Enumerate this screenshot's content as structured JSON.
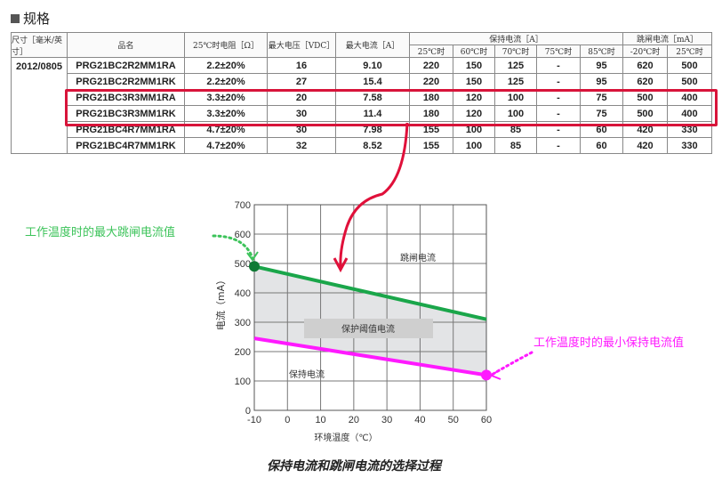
{
  "section_title": "规格",
  "table": {
    "headers": {
      "size": "尺寸［毫米/英寸］",
      "name": "品名",
      "resistance": "25℃时电阻［Ω］",
      "max_voltage": "最大电压［VDC］",
      "max_current": "最大电流［A］",
      "hold_current": "保持电流［A］",
      "trip_current": "跳闸电流［mA］",
      "hold_temps": [
        "25℃时",
        "60℃时",
        "70℃时",
        "75℃时",
        "85℃时"
      ],
      "trip_temps": [
        "-20℃时",
        "25℃时"
      ]
    },
    "size_value": "2012/0805",
    "rows": [
      [
        "PRG21BC2R2MM1RA",
        "2.2±20%",
        "16",
        "9.10",
        "220",
        "150",
        "125",
        "-",
        "95",
        "620",
        "500"
      ],
      [
        "PRG21BC2R2MM1RK",
        "2.2±20%",
        "27",
        "15.4",
        "220",
        "150",
        "125",
        "-",
        "95",
        "620",
        "500"
      ],
      [
        "PRG21BC3R3MM1RA",
        "3.3±20%",
        "20",
        "7.58",
        "180",
        "120",
        "100",
        "-",
        "75",
        "500",
        "400"
      ],
      [
        "PRG21BC3R3MM1RK",
        "3.3±20%",
        "30",
        "11.4",
        "180",
        "120",
        "100",
        "-",
        "75",
        "500",
        "400"
      ],
      [
        "PRG21BC4R7MM1RA",
        "4.7±20%",
        "30",
        "7.98",
        "155",
        "100",
        "85",
        "-",
        "60",
        "420",
        "330"
      ],
      [
        "PRG21BC4R7MM1RK",
        "4.7±20%",
        "32",
        "8.52",
        "155",
        "100",
        "85",
        "-",
        "60",
        "420",
        "330"
      ]
    ],
    "highlighted_rows": [
      2,
      3
    ],
    "highlight_color": "#d8143a"
  },
  "chart_data": {
    "type": "line",
    "xlabel": "环境温度（℃）",
    "ylabel": "电流（mA）",
    "xlim": [
      -10,
      60
    ],
    "ylim": [
      0,
      700
    ],
    "xticks": [
      -10,
      0,
      10,
      20,
      30,
      40,
      50,
      60
    ],
    "yticks": [
      0,
      100,
      200,
      300,
      400,
      500,
      600,
      700
    ],
    "grid": true,
    "series": [
      {
        "name": "跳闸电流",
        "x": [
          -10,
          60
        ],
        "y": [
          490,
          310
        ],
        "color": "#1aa64a"
      },
      {
        "name": "保持电流",
        "x": [
          -10,
          60
        ],
        "y": [
          245,
          120
        ],
        "color": "#ff1aff"
      }
    ],
    "band_label": "保护阈值电流",
    "band_color": "#e3e4e6"
  },
  "annotations": {
    "trip_max": {
      "text": "工作温度时的最大跳闸电流值",
      "color": "#3cc35a"
    },
    "hold_min": {
      "text": "工作温度时的最小保持电流值",
      "color": "#ff1aff"
    }
  },
  "caption": "保持电流和跳闸电流的选择过程"
}
